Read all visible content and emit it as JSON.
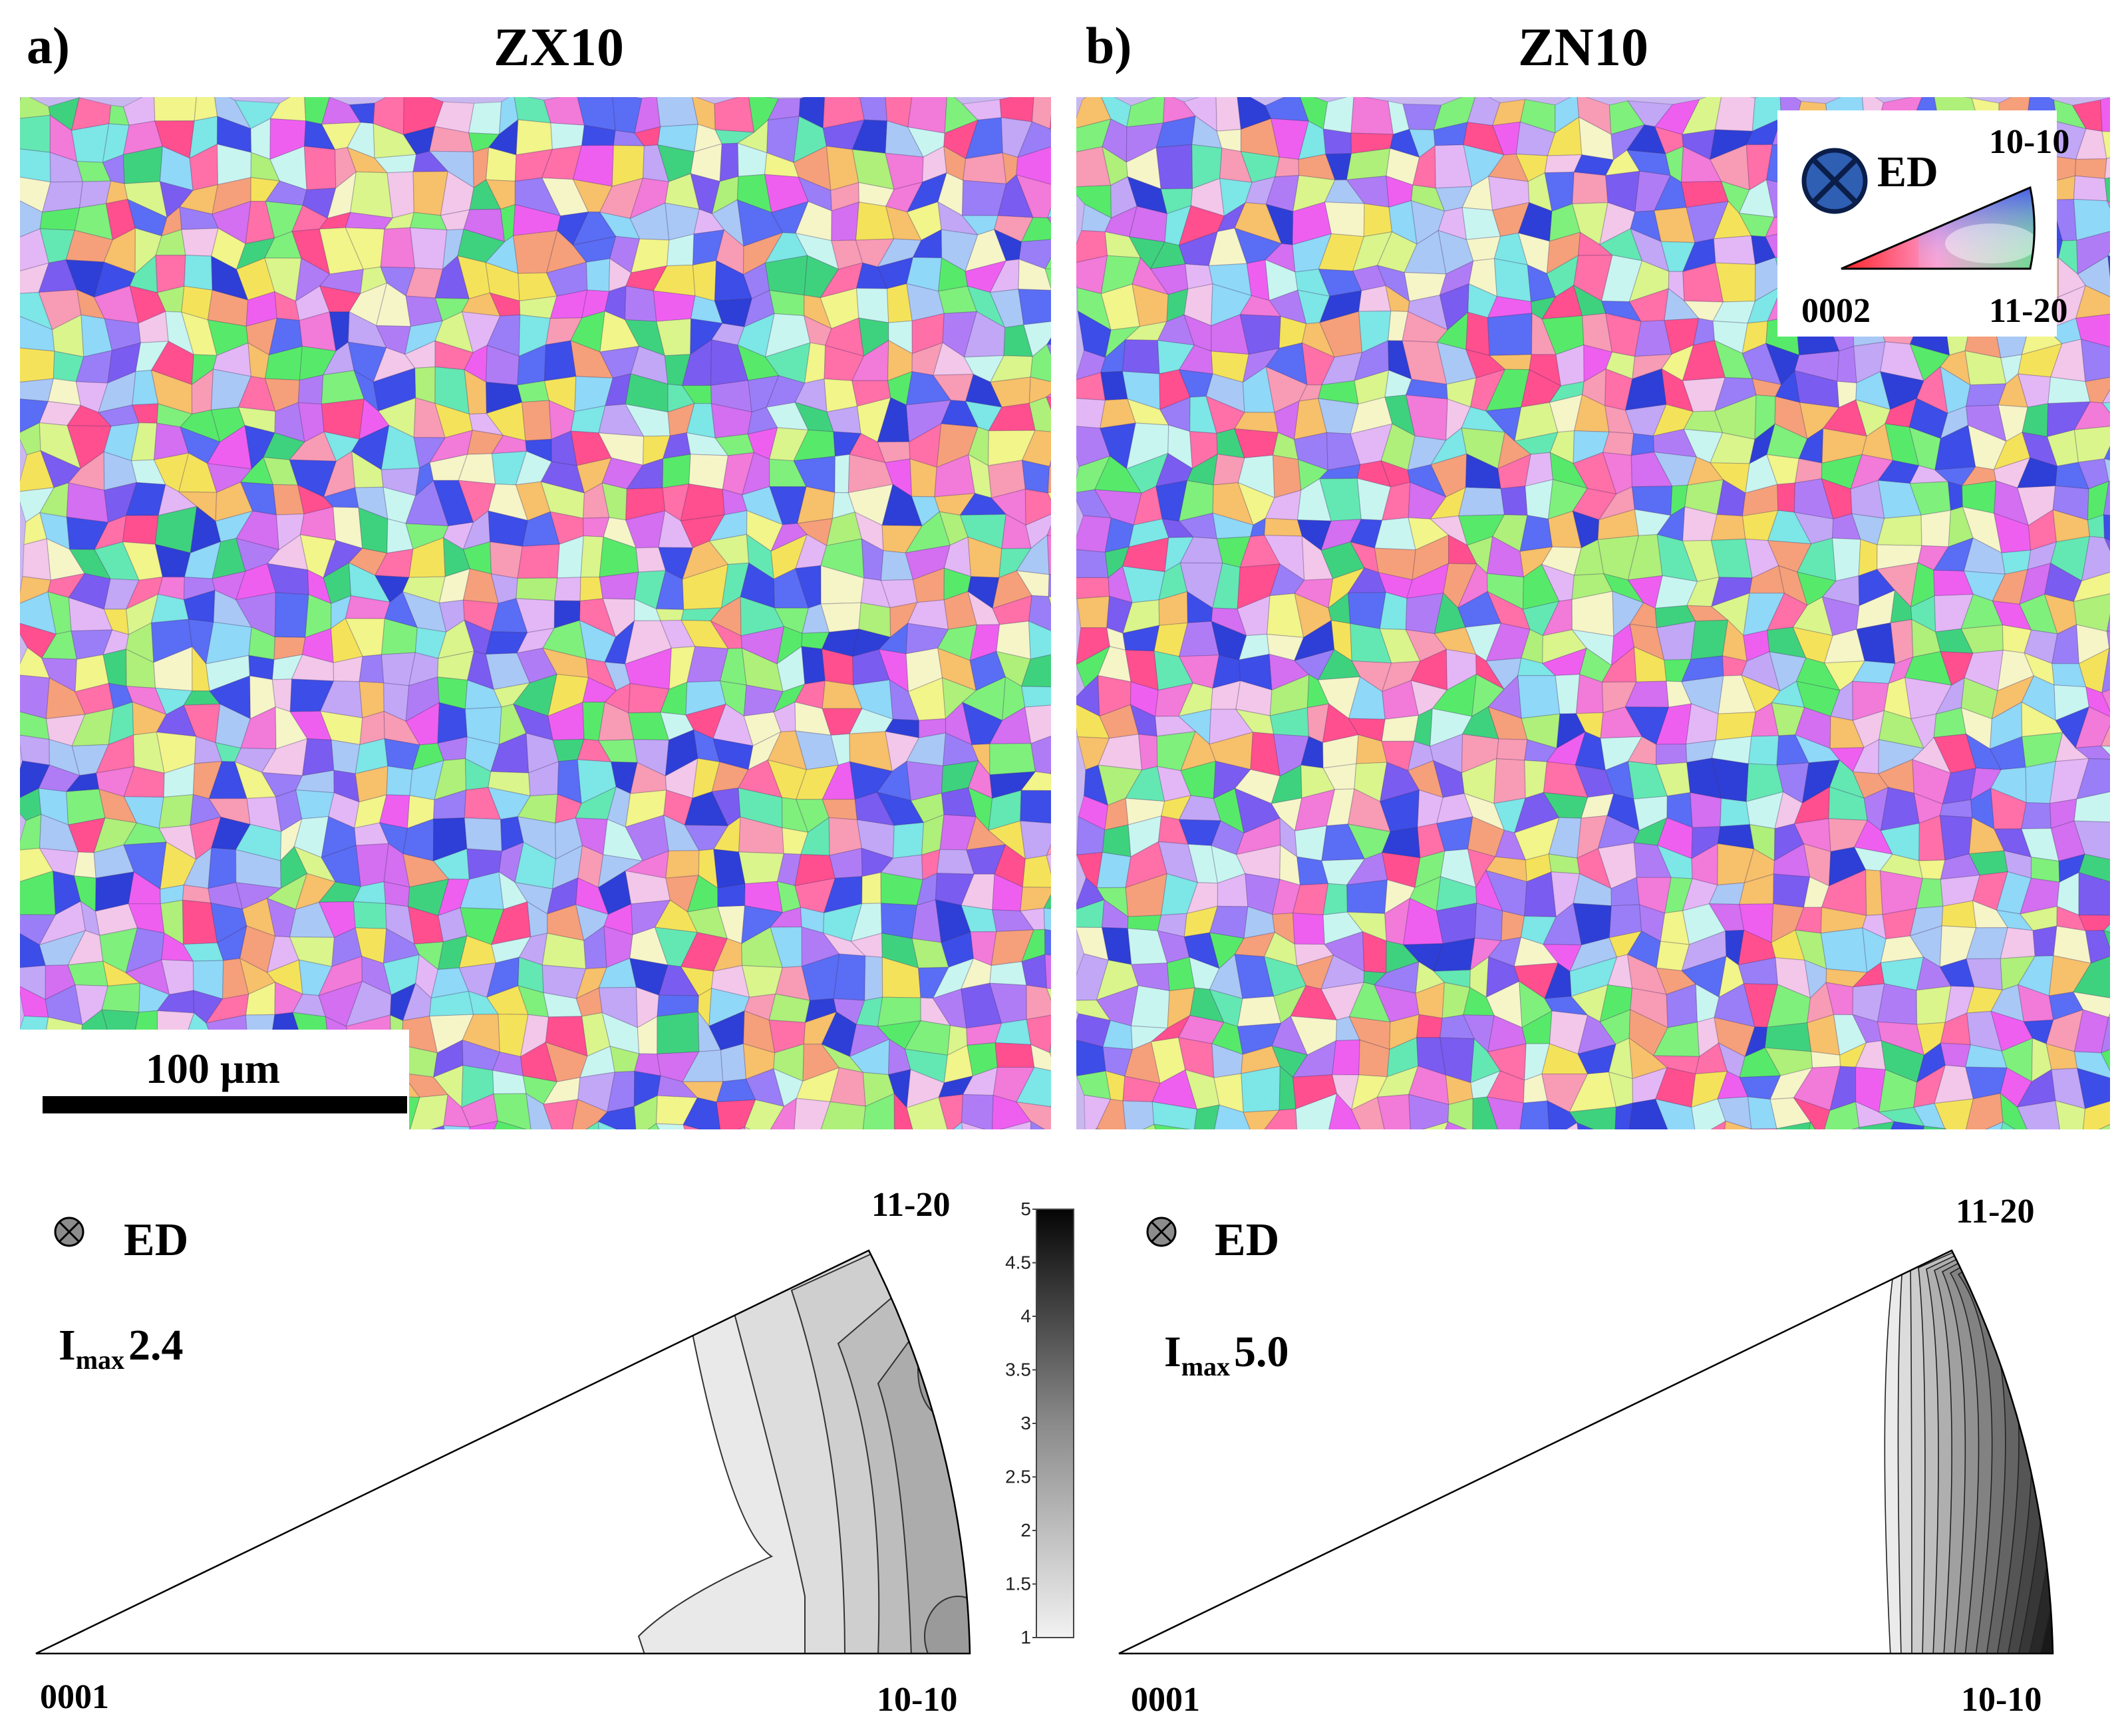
{
  "panels": [
    {
      "letter": "a)",
      "title": "ZX10",
      "scale_bar_label": "100 µm",
      "ipf": {
        "direction_label": "ED",
        "imax_symbol": "I",
        "imax_subscript": "max",
        "imax_value": "2.4",
        "corner_0001": "0001",
        "corner_10_10": "10-10",
        "corner_11_20": "11-20",
        "max_intensity": 2.4,
        "max_location": "10-10 / 11-20 arc (prismatic)"
      }
    },
    {
      "letter": "b)",
      "title": "ZN10",
      "ipf": {
        "direction_label": "ED",
        "imax_symbol": "I",
        "imax_subscript": "max",
        "imax_value": "5.0",
        "corner_0001": "0001",
        "corner_10_10": "10-10",
        "corner_11_20": "11-20",
        "max_intensity": 5.0,
        "max_location": "11-20 corner"
      }
    }
  ],
  "color_key": {
    "direction_label": "ED",
    "corner_0002": "0002",
    "corner_10_10": "10-10",
    "corner_11_20": "11-20",
    "colors": {
      "0002": "#ff0000",
      "10-10": "#0000ff",
      "11-20": "#00ff00"
    }
  },
  "colorbar": {
    "ticks": [
      "5",
      "4.5",
      "4",
      "3.5",
      "3",
      "2.5",
      "2",
      "1.5",
      "1"
    ],
    "min": 1,
    "max": 5
  },
  "grain_palette": [
    "#7b5cf0",
    "#5a6df5",
    "#3c4de8",
    "#9a7ef7",
    "#b07cf6",
    "#d36ff0",
    "#f27ad8",
    "#ff6fa8",
    "#f89bb5",
    "#f5a07a",
    "#f7c06a",
    "#f4e35a",
    "#f1f58a",
    "#d9f58c",
    "#aef07a",
    "#7ff07c",
    "#57ea6a",
    "#63e8b3",
    "#7de6e6",
    "#8fd8f7",
    "#a9c8f5",
    "#c1a7f6",
    "#e3b7f5",
    "#f2c7e9",
    "#3fd27e",
    "#2d3fd6",
    "#ee5ff0",
    "#f5f5c8",
    "#c8f5f0",
    "#ff4f8f"
  ]
}
